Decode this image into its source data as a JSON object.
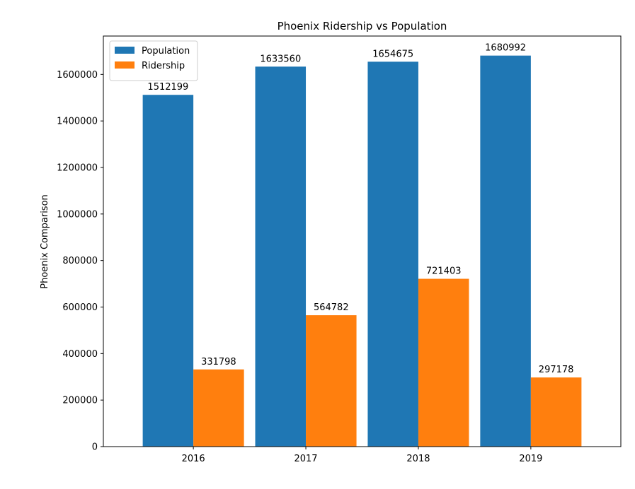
{
  "chart_data": {
    "type": "bar",
    "title": "Phoenix Ridership vs Population",
    "xlabel": "",
    "ylabel": "Phoenix Comparison",
    "categories": [
      "2016",
      "2017",
      "2018",
      "2019"
    ],
    "series": [
      {
        "name": "Population",
        "color": "#1f77b4",
        "values": [
          1512199,
          1633560,
          1654675,
          1680992
        ]
      },
      {
        "name": "Ridership",
        "color": "#ff7f0e",
        "values": [
          331798,
          564782,
          721403,
          297178
        ]
      }
    ],
    "ylim": [
      0,
      1765042
    ],
    "yticks": [
      0,
      200000,
      400000,
      600000,
      800000,
      1000000,
      1200000,
      1400000,
      1600000
    ],
    "legend": "top-left",
    "grid": false,
    "data_labels": true
  }
}
